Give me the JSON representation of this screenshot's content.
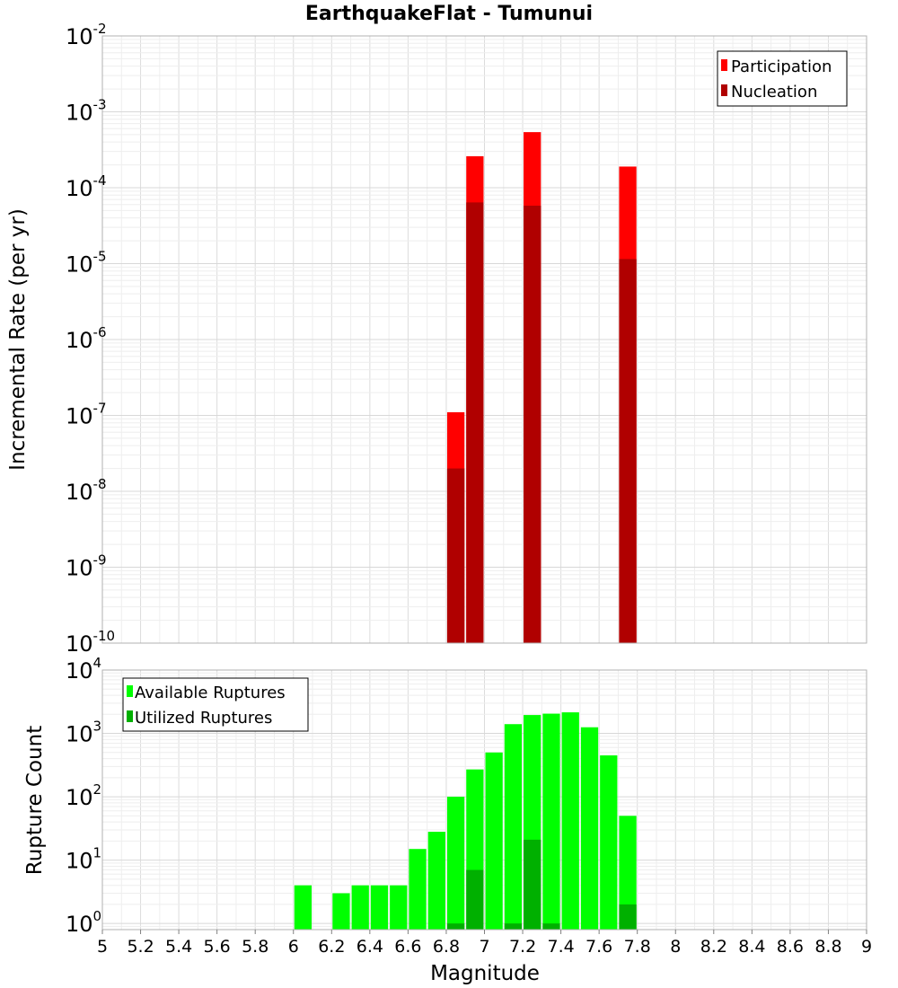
{
  "chart_data": [
    {
      "type": "bar",
      "title": "EarthquakeFlat - Tumunui",
      "xlabel": "",
      "ylabel": "Incremental Rate (per yr)",
      "xlim": [
        5,
        9
      ],
      "ylim": [
        1e-10,
        0.01
      ],
      "yscale": "log",
      "bin_width": 0.1,
      "grid": true,
      "legend_position": "top-right",
      "series": [
        {
          "name": "Participation",
          "color": "#ff0000",
          "x": [
            6.85,
            6.95,
            7.25,
            7.75
          ],
          "values": [
            1.1e-07,
            0.00026,
            0.00054,
            0.00019
          ]
        },
        {
          "name": "Nucleation",
          "color": "#b00000",
          "x": [
            6.85,
            6.95,
            7.25,
            7.75
          ],
          "values": [
            2e-08,
            6.4e-05,
            5.8e-05,
            1.15e-05
          ]
        }
      ],
      "y_ticks": [
        {
          "base": "10",
          "exp": "-10"
        },
        {
          "base": "10",
          "exp": "-9"
        },
        {
          "base": "10",
          "exp": "-8"
        },
        {
          "base": "10",
          "exp": "-7"
        },
        {
          "base": "10",
          "exp": "-6"
        },
        {
          "base": "10",
          "exp": "-5"
        },
        {
          "base": "10",
          "exp": "-4"
        },
        {
          "base": "10",
          "exp": "-3"
        },
        {
          "base": "10",
          "exp": "-2"
        }
      ]
    },
    {
      "type": "bar",
      "title": "",
      "xlabel": "Magnitude",
      "ylabel": "Rupture Count",
      "xlim": [
        5,
        9
      ],
      "ylim": [
        0.8,
        10000
      ],
      "yscale": "log",
      "bin_width": 0.1,
      "grid": true,
      "legend_position": "top-left",
      "x_tick_labels": [
        "5",
        "5.2",
        "5.4",
        "5.6",
        "5.8",
        "6",
        "6.2",
        "6.4",
        "6.6",
        "6.8",
        "7",
        "7.2",
        "7.4",
        "7.6",
        "7.8",
        "8",
        "8.2",
        "8.4",
        "8.6",
        "8.8",
        "9"
      ],
      "series": [
        {
          "name": "Available Ruptures",
          "color": "#00ff00",
          "x": [
            6.05,
            6.25,
            6.35,
            6.45,
            6.55,
            6.65,
            6.75,
            6.85,
            6.95,
            7.05,
            7.15,
            7.25,
            7.35,
            7.45,
            7.55,
            7.65,
            7.75
          ],
          "values": [
            4,
            3,
            4,
            4,
            4,
            15,
            28,
            100,
            270,
            500,
            1400,
            1950,
            2050,
            2150,
            1250,
            450,
            50
          ]
        },
        {
          "name": "Utilized Ruptures",
          "color": "#00b000",
          "x": [
            6.85,
            6.95,
            7.15,
            7.25,
            7.35,
            7.75
          ],
          "values": [
            1,
            7,
            1,
            21,
            1,
            2
          ]
        }
      ],
      "y_ticks": [
        {
          "base": "10",
          "exp": "0"
        },
        {
          "base": "10",
          "exp": "1"
        },
        {
          "base": "10",
          "exp": "2"
        },
        {
          "base": "10",
          "exp": "3"
        },
        {
          "base": "10",
          "exp": "4"
        }
      ]
    }
  ]
}
